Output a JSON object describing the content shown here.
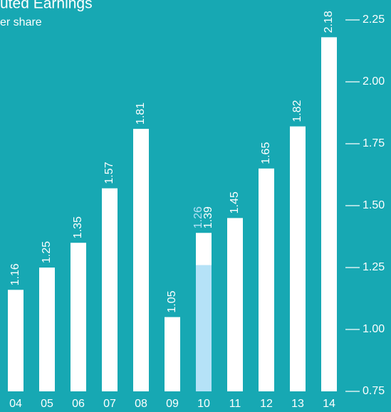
{
  "chart_data": {
    "type": "bar",
    "title": "uted Earnings",
    "subtitle": "er share",
    "categories": [
      "04",
      "05",
      "06",
      "07",
      "08",
      "09",
      "10",
      "11",
      "12",
      "13",
      "14"
    ],
    "series": [
      {
        "color": "#ffffff",
        "values": [
          1.16,
          1.25,
          1.35,
          1.57,
          1.81,
          1.05,
          1.39,
          1.45,
          1.65,
          1.82,
          2.18
        ]
      },
      {
        "color": "#b5e2f7",
        "values": [
          null,
          null,
          null,
          null,
          null,
          null,
          1.26,
          null,
          null,
          null,
          null
        ]
      }
    ],
    "ylim": [
      0.75,
      2.25
    ],
    "yticks": [
      {
        "value": 0.75,
        "label": "0.75"
      },
      {
        "value": 1,
        "label": "1.00"
      },
      {
        "value": 1.25,
        "label": "1.25"
      },
      {
        "value": 1.5,
        "label": "1.50"
      },
      {
        "value": 1.75,
        "label": "1.75"
      },
      {
        "value": 2,
        "label": "2.00"
      },
      {
        "value": 2.25,
        "label": "2.25"
      }
    ],
    "background": "#17a8b3"
  }
}
